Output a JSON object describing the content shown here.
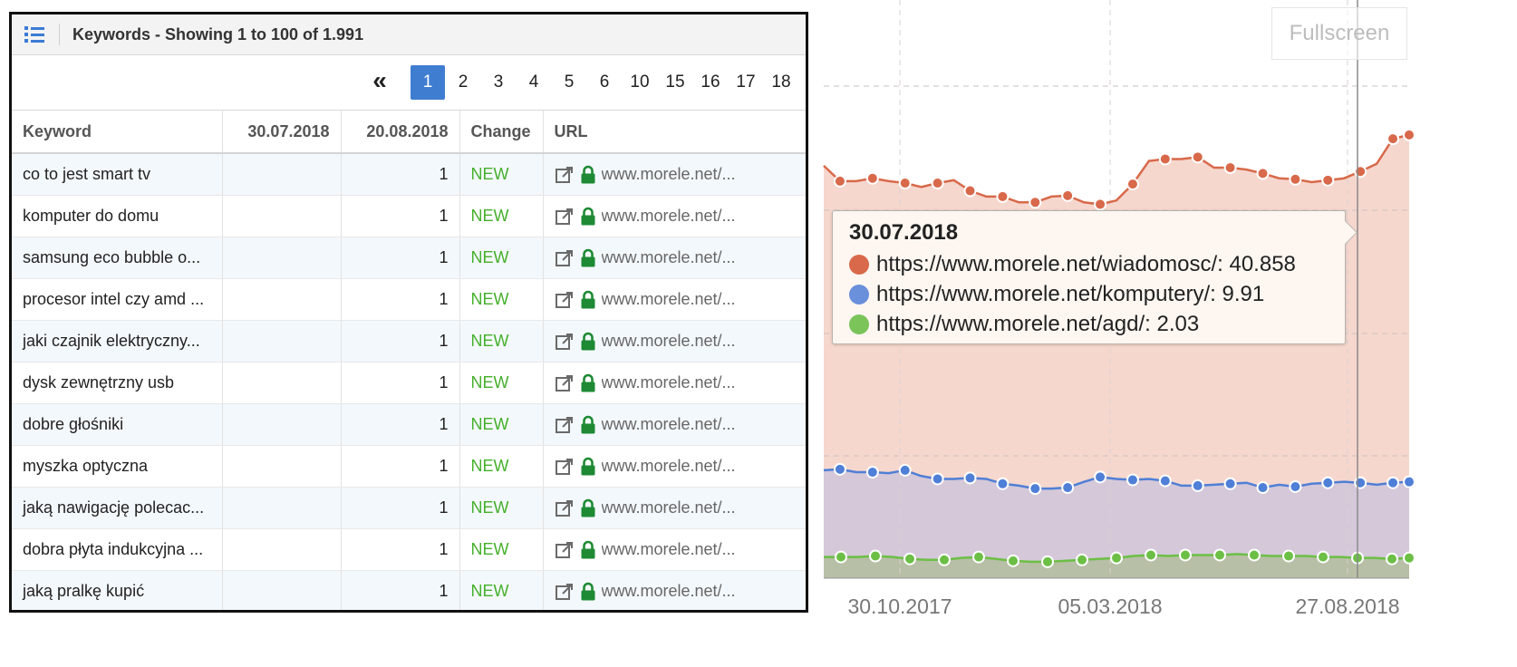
{
  "keywords_panel": {
    "title": "Keywords - Showing 1 to 100 of 1.991",
    "pagination": {
      "first_label": "«",
      "pages": [
        "1",
        "2",
        "3",
        "4",
        "5",
        "6",
        "10",
        "15",
        "16",
        "17",
        "18"
      ],
      "active_page": "1"
    },
    "columns": [
      "Keyword",
      "30.07.2018",
      "20.08.2018",
      "Change",
      "URL"
    ],
    "rows": [
      {
        "keyword": "co to jest smart tv",
        "prev": "",
        "curr": "1",
        "change": "NEW",
        "url": "www.morele.net/..."
      },
      {
        "keyword": "komputer do domu",
        "prev": "",
        "curr": "1",
        "change": "NEW",
        "url": "www.morele.net/..."
      },
      {
        "keyword": "samsung eco bubble o...",
        "prev": "",
        "curr": "1",
        "change": "NEW",
        "url": "www.morele.net/..."
      },
      {
        "keyword": "procesor intel czy amd ...",
        "prev": "",
        "curr": "1",
        "change": "NEW",
        "url": "www.morele.net/..."
      },
      {
        "keyword": "jaki czajnik elektryczny...",
        "prev": "",
        "curr": "1",
        "change": "NEW",
        "url": "www.morele.net/..."
      },
      {
        "keyword": "dysk zewnętrzny usb",
        "prev": "",
        "curr": "1",
        "change": "NEW",
        "url": "www.morele.net/..."
      },
      {
        "keyword": "dobre głośniki",
        "prev": "",
        "curr": "1",
        "change": "NEW",
        "url": "www.morele.net/..."
      },
      {
        "keyword": "myszka optyczna",
        "prev": "",
        "curr": "1",
        "change": "NEW",
        "url": "www.morele.net/..."
      },
      {
        "keyword": "jaką nawigację polecac...",
        "prev": "",
        "curr": "1",
        "change": "NEW",
        "url": "www.morele.net/..."
      },
      {
        "keyword": "dobra płyta indukcyjna ...",
        "prev": "",
        "curr": "1",
        "change": "NEW",
        "url": "www.morele.net/..."
      },
      {
        "keyword": "jaką pralkę kupić",
        "prev": "",
        "curr": "1",
        "change": "NEW",
        "url": "www.morele.net/..."
      }
    ],
    "colors": {
      "change_new": "#44b02a",
      "lock": "#1e8a34",
      "active_page": "#3f7dd1"
    }
  },
  "chart": {
    "fullscreen_label": "Fullscreen",
    "tooltip": {
      "date": "30.07.2018",
      "items": [
        {
          "label": "https://www.morele.net/wiadomosc/: 40.858",
          "color": "#d8694a"
        },
        {
          "label": "https://www.morele.net/komputery/: 9.91",
          "color": "#6a8fdb"
        },
        {
          "label": "https://www.morele.net/agd/: 2.03",
          "color": "#7ac45a"
        }
      ]
    }
  },
  "chart_data": {
    "type": "area",
    "title": "",
    "xlabel": "",
    "ylabel": "",
    "x_tick_labels": [
      "30.10.2017",
      "05.03.2018",
      "27.08.2018"
    ],
    "ylim": [
      0,
      60
    ],
    "grid": true,
    "series": [
      {
        "name": "https://www.morele.net/wiadomosc/",
        "color": "#d8694a",
        "fill": "#f6d7cd",
        "values": [
          42.8,
          41.2,
          41.2,
          41.5,
          41.2,
          41.0,
          40.6,
          41.0,
          41.3,
          40.2,
          39.6,
          39.6,
          39.0,
          39.0,
          39.6,
          39.7,
          39.0,
          38.8,
          39.2,
          40.9,
          43.3,
          43.5,
          43.5,
          43.7,
          42.6,
          42.6,
          42.4,
          42.0,
          41.5,
          41.4,
          41.1,
          41.3,
          41.5,
          42.2,
          43.0,
          45.6,
          46.0
        ]
      },
      {
        "name": "https://www.morele.net/komputery/",
        "color": "#4f7fd6",
        "fill": "#d4c8d9",
        "values": [
          11.2,
          11.3,
          11.0,
          11.0,
          10.9,
          11.2,
          10.6,
          10.3,
          10.3,
          10.4,
          10.3,
          9.8,
          9.6,
          9.3,
          9.3,
          9.4,
          10.0,
          10.5,
          10.3,
          10.2,
          10.3,
          10.1,
          9.6,
          9.6,
          9.7,
          9.8,
          9.9,
          9.4,
          9.7,
          9.5,
          9.8,
          9.9,
          10.0,
          9.9,
          9.7,
          9.9,
          10.0
        ]
      },
      {
        "name": "https://www.morele.net/agd/",
        "color": "#6cbf45",
        "fill": "#b7bfa6",
        "values": [
          2.2,
          2.2,
          2.2,
          2.3,
          2.2,
          2.0,
          1.9,
          1.9,
          2.1,
          2.2,
          2.0,
          1.8,
          1.7,
          1.7,
          1.8,
          1.9,
          2.0,
          2.1,
          2.3,
          2.4,
          2.3,
          2.4,
          2.4,
          2.4,
          2.5,
          2.4,
          2.3,
          2.3,
          2.3,
          2.2,
          2.2,
          2.1,
          2.1,
          2.0,
          2.1
        ]
      }
    ]
  }
}
